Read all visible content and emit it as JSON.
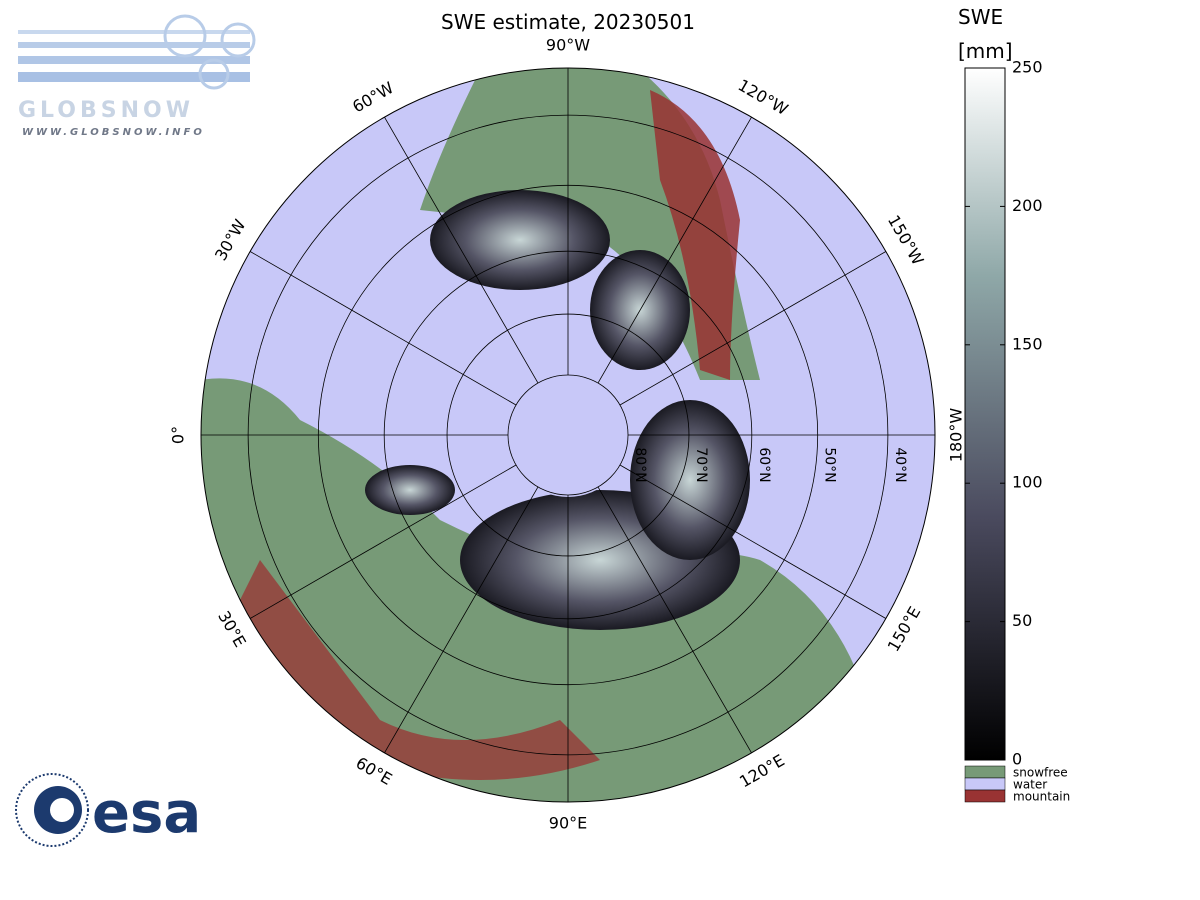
{
  "header": {
    "title": "SWE estimate, 20230501"
  },
  "logos": {
    "globsnow": "GLOBSNOW",
    "globsnow_url": "WWW.GLOBSNOW.INFO",
    "esa": "esa"
  },
  "map": {
    "meridians": [
      {
        "value": -90,
        "label": "90°W"
      },
      {
        "value": -120,
        "label": "120°W"
      },
      {
        "value": -150,
        "label": "150°W"
      },
      {
        "value": 180,
        "label": "180°W"
      },
      {
        "value": 150,
        "label": "150°E"
      },
      {
        "value": 120,
        "label": "120°E"
      },
      {
        "value": 90,
        "label": "90°E"
      },
      {
        "value": 60,
        "label": "60°E"
      },
      {
        "value": 30,
        "label": "30°E"
      },
      {
        "value": 0,
        "label": "0°"
      },
      {
        "value": -30,
        "label": "30°W"
      },
      {
        "value": -60,
        "label": "60°W"
      }
    ],
    "parallels": [
      {
        "value": 80,
        "label": "80°N"
      },
      {
        "value": 70,
        "label": "70°N"
      },
      {
        "value": 60,
        "label": "60°N"
      },
      {
        "value": 50,
        "label": "50°N"
      },
      {
        "value": 40,
        "label": "40°N"
      }
    ]
  },
  "colorbar": {
    "label": [
      "SWE",
      "[mm]"
    ],
    "lim": [
      0,
      250
    ],
    "ticks": [
      0,
      50,
      100,
      150,
      200,
      250
    ]
  },
  "legend": [
    {
      "label": "snowfree",
      "color": "#779a77"
    },
    {
      "label": "water",
      "color": "#c8c8f8"
    },
    {
      "label": "mountain",
      "color": "#993333"
    }
  ]
}
